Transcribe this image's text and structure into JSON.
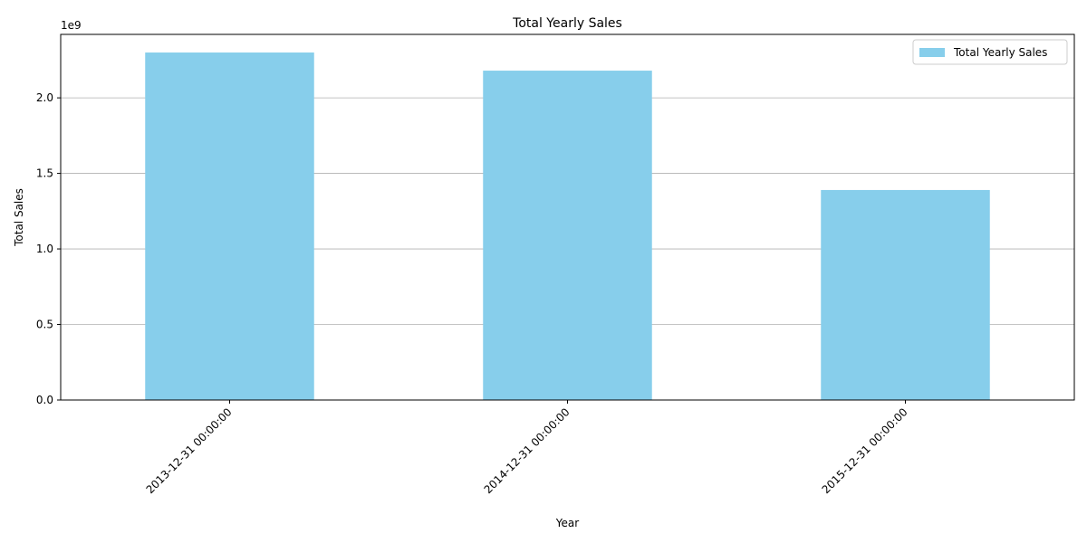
{
  "chart_data": {
    "type": "bar",
    "title": "Total Yearly Sales",
    "xlabel": "Year",
    "ylabel": "Total Sales",
    "y_offset_label": "1e9",
    "y_scale_factor": 1000000000,
    "categories": [
      "2013-12-31 00:00:00",
      "2014-12-31 00:00:00",
      "2015-12-31 00:00:00"
    ],
    "series": [
      {
        "name": "Total Yearly Sales",
        "color": "#87ceeb",
        "values": [
          2300000000,
          2180000000,
          1390000000
        ]
      }
    ],
    "ylim": [
      0,
      2420000000
    ],
    "y_ticks": [
      0,
      500000000,
      1000000000,
      1500000000,
      2000000000
    ],
    "y_tick_labels": [
      "0.0",
      "0.5",
      "1.0",
      "1.5",
      "2.0"
    ],
    "grid": "y",
    "grid_color": "#b0b0b0",
    "legend": "top-right",
    "x_tick_rotation": 45
  }
}
